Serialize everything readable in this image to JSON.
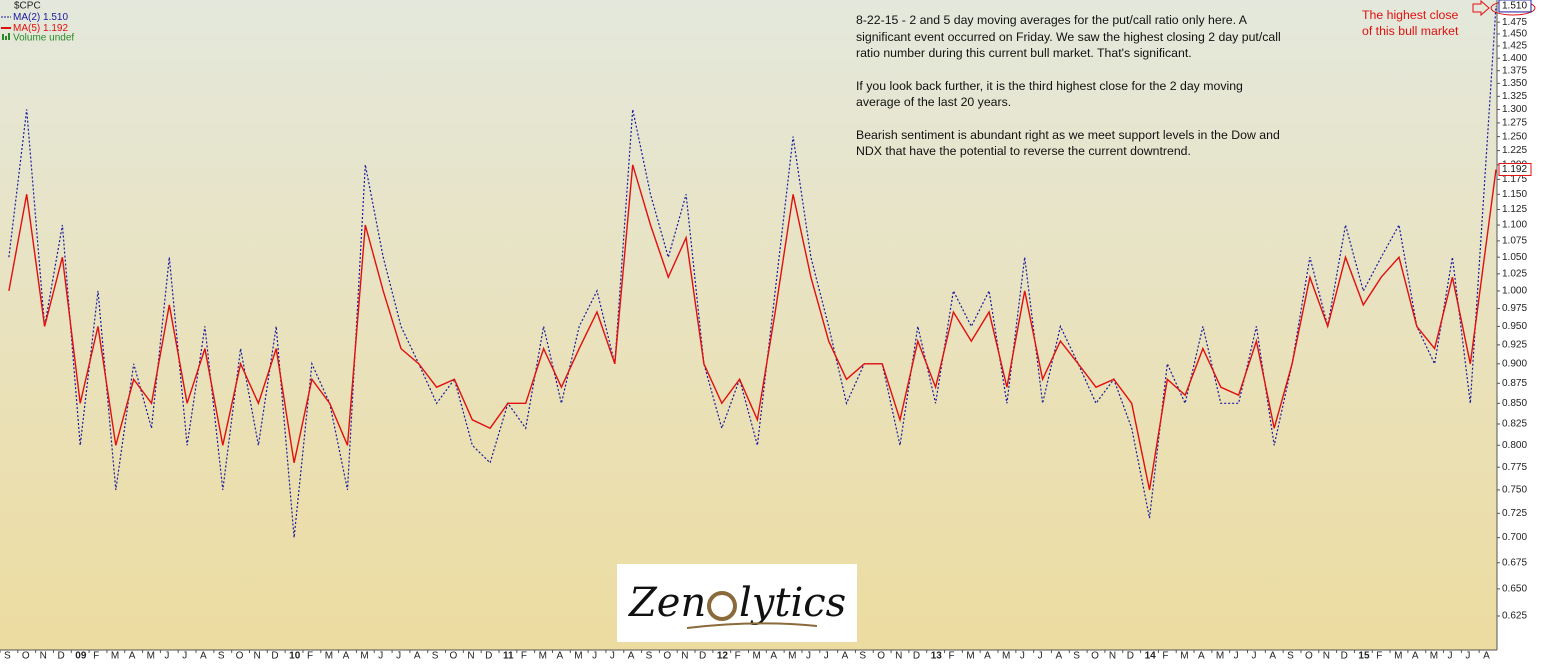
{
  "chart_data": {
    "type": "line",
    "symbol": "$CPC",
    "categories": [
      "S",
      "O",
      "N",
      "D",
      "09",
      "F",
      "M",
      "A",
      "M",
      "J",
      "J",
      "A",
      "S",
      "O",
      "N",
      "D",
      "10",
      "F",
      "M",
      "A",
      "M",
      "J",
      "J",
      "A",
      "S",
      "O",
      "N",
      "D",
      "11",
      "F",
      "M",
      "A",
      "M",
      "J",
      "J",
      "A",
      "S",
      "O",
      "N",
      "D",
      "12",
      "F",
      "M",
      "A",
      "M",
      "J",
      "J",
      "A",
      "S",
      "O",
      "N",
      "D",
      "13",
      "F",
      "M",
      "A",
      "M",
      "J",
      "J",
      "A",
      "S",
      "O",
      "N",
      "D",
      "14",
      "F",
      "M",
      "A",
      "M",
      "J",
      "J",
      "A",
      "S",
      "O",
      "N",
      "D",
      "15",
      "F",
      "M",
      "A",
      "M",
      "J",
      "J",
      "A"
    ],
    "series": [
      {
        "name": "MA(2)",
        "last_label": "1.510",
        "color": "#1a1aa0",
        "dashed": true,
        "values": [
          1.05,
          1.3,
          0.95,
          1.1,
          0.8,
          1.0,
          0.75,
          0.9,
          0.82,
          1.05,
          0.8,
          0.95,
          0.75,
          0.92,
          0.8,
          0.95,
          0.7,
          0.9,
          0.85,
          0.75,
          1.2,
          1.05,
          0.95,
          0.9,
          0.85,
          0.88,
          0.8,
          0.78,
          0.85,
          0.82,
          0.95,
          0.85,
          0.95,
          1.0,
          0.9,
          1.3,
          1.15,
          1.05,
          1.15,
          0.9,
          0.82,
          0.88,
          0.8,
          1.0,
          1.25,
          1.05,
          0.95,
          0.85,
          0.9,
          0.9,
          0.8,
          0.95,
          0.85,
          1.0,
          0.95,
          1.0,
          0.85,
          1.05,
          0.85,
          0.95,
          0.9,
          0.85,
          0.88,
          0.82,
          0.72,
          0.9,
          0.85,
          0.95,
          0.85,
          0.85,
          0.95,
          0.8,
          0.9,
          1.05,
          0.95,
          1.1,
          1.0,
          1.05,
          1.1,
          0.95,
          0.9,
          1.05,
          0.85,
          1.51
        ]
      },
      {
        "name": "MA(5)",
        "last_label": "1.192",
        "color": "#e01010",
        "dashed": false,
        "values": [
          1.0,
          1.15,
          0.95,
          1.05,
          0.85,
          0.95,
          0.8,
          0.88,
          0.85,
          0.98,
          0.85,
          0.92,
          0.8,
          0.9,
          0.85,
          0.92,
          0.78,
          0.88,
          0.85,
          0.8,
          1.1,
          1.0,
          0.92,
          0.9,
          0.87,
          0.88,
          0.83,
          0.82,
          0.85,
          0.85,
          0.92,
          0.87,
          0.92,
          0.97,
          0.9,
          1.2,
          1.1,
          1.02,
          1.08,
          0.9,
          0.85,
          0.88,
          0.83,
          0.97,
          1.15,
          1.02,
          0.93,
          0.88,
          0.9,
          0.9,
          0.83,
          0.93,
          0.87,
          0.97,
          0.93,
          0.97,
          0.87,
          1.0,
          0.88,
          0.93,
          0.9,
          0.87,
          0.88,
          0.85,
          0.75,
          0.88,
          0.86,
          0.92,
          0.87,
          0.86,
          0.93,
          0.82,
          0.9,
          1.02,
          0.95,
          1.05,
          0.98,
          1.02,
          1.05,
          0.95,
          0.92,
          1.02,
          0.9,
          1.192
        ]
      }
    ],
    "volume_legend": "Volume undef",
    "log": true,
    "ylim": [
      0.595,
      1.523
    ],
    "yticks": [
      0.625,
      {
        "value": 0.65,
        "label": "0.650"
      },
      0.675,
      {
        "value": 0.7,
        "label": "0.700"
      },
      0.725,
      {
        "value": 0.75,
        "label": "0.750"
      },
      0.775,
      {
        "value": 0.8,
        "label": "0.800"
      },
      0.825,
      {
        "value": 0.85,
        "label": "0.850"
      },
      0.875,
      {
        "value": 0.9,
        "label": "0.900"
      },
      0.925,
      {
        "value": 0.95,
        "label": "0.950"
      },
      0.975,
      {
        "value": 1,
        "label": "1.000"
      },
      1.025,
      {
        "value": 1.05,
        "label": "1.050"
      },
      1.075,
      {
        "value": 1.1,
        "label": "1.100"
      },
      1.125,
      {
        "value": 1.15,
        "label": "1.150"
      },
      1.175,
      {
        "value": 1.2,
        "label": "1.200"
      },
      1.225,
      {
        "value": 1.25,
        "label": "1.250"
      },
      1.275,
      {
        "value": 1.3,
        "label": "1.300"
      },
      1.325,
      {
        "value": 1.35,
        "label": "1.350"
      },
      1.375,
      {
        "value": 1.4,
        "label": "1.400"
      },
      1.425,
      {
        "value": 1.45,
        "label": "1.450"
      },
      1.475
    ],
    "grid": false,
    "notes": [
      "8-22-15 - 2 and 5 day moving averages for the put/call ratio only here. A significant event occurred on Friday. We saw the highest closing 2 day put/call ratio number during this current bull market. That's significant.",
      "If you look back further, it is the third highest close for the 2 day moving average of the last 20 years.",
      "Bearish sentiment is abundant right as we meet support levels in the Dow and NDX that have the potential to reverse the current downtrend."
    ],
    "callout": [
      "The highest close",
      "of this bull market"
    ],
    "logo": [
      "Zen",
      "lytics"
    ]
  }
}
